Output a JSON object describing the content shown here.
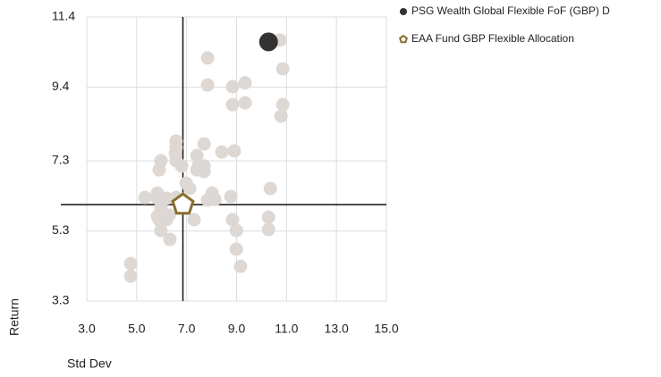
{
  "chart_data": {
    "type": "scatter",
    "xlabel": "Std Dev",
    "ylabel": "Return",
    "xlim": [
      3,
      15
    ],
    "ylim": [
      3.3,
      11.4
    ],
    "xticks": [
      {
        "value": 3,
        "label": "3.0"
      },
      {
        "value": 5,
        "label": "5.0"
      },
      {
        "value": 7,
        "label": "7.0"
      },
      {
        "value": 9,
        "label": "9.0"
      },
      {
        "value": 11,
        "label": "11.0"
      },
      {
        "value": 13,
        "label": "13.0"
      },
      {
        "value": 15,
        "label": "15.0"
      }
    ],
    "yticks": [
      3.3,
      5.3,
      7.3,
      9.4,
      11.4
    ],
    "grid": true,
    "crosshair": {
      "x": 6.85,
      "y": 6.05
    },
    "legend": "top-right",
    "series": [
      {
        "color": "#ddd8d4",
        "marker": "circle",
        "x": [
          10.74,
          10.85,
          7.84,
          7.84,
          8.84,
          9.34,
          8.84,
          9.34,
          10.85,
          10.78,
          6.58,
          6.58,
          7.7,
          6.55,
          8.41,
          8.91,
          5.97,
          6.58,
          6.8,
          7.41,
          7.48,
          7.7,
          7.7,
          5.9,
          7.41,
          6.98,
          7.12,
          8.02,
          10.35,
          5.33,
          5.83,
          5.83,
          6.19,
          6.58,
          7.84,
          8.13,
          8.77,
          5.97,
          6.3,
          5.83,
          5.9,
          7.3,
          6.19,
          8.84,
          10.28,
          5.97,
          6.33,
          8.99,
          10.28,
          8.99,
          9.16,
          4.76,
          4.76
        ],
        "values": [
          10.74,
          9.92,
          10.23,
          9.46,
          9.41,
          9.52,
          8.9,
          8.95,
          8.9,
          8.57,
          7.86,
          7.68,
          7.78,
          7.5,
          7.55,
          7.58,
          7.3,
          7.3,
          7.15,
          7.45,
          7.17,
          7.15,
          6.99,
          7.04,
          7.04,
          6.66,
          6.51,
          6.38,
          6.51,
          6.25,
          6.38,
          6.23,
          6.23,
          6.25,
          6.18,
          6.2,
          6.28,
          5.97,
          5.75,
          5.72,
          5.62,
          5.62,
          5.62,
          5.62,
          5.69,
          5.31,
          5.06,
          5.31,
          5.34,
          4.78,
          4.29,
          4.37,
          4.01
        ]
      },
      {
        "name": "PSG Wealth Global Flexible FoF (GBP) D",
        "color": "#333333",
        "marker": "circle",
        "x": [
          10.28
        ],
        "values": [
          10.69
        ]
      },
      {
        "name": "EAA Fund GBP Flexible Allocation",
        "color": "#8a6d2e",
        "marker": "pentagon",
        "x": [
          6.85
        ],
        "values": [
          6.05
        ]
      }
    ]
  }
}
